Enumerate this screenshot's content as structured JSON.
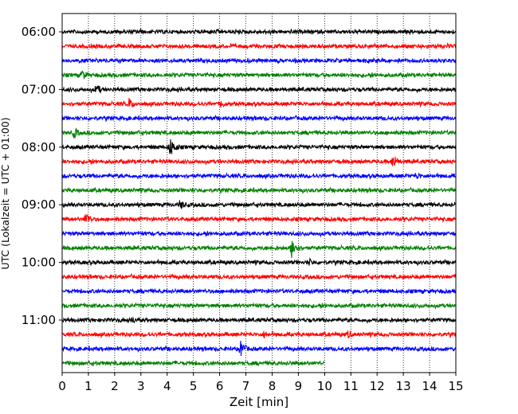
{
  "chart_data": {
    "type": "line",
    "title": "",
    "xlabel": "Zeit  [min]",
    "ylabel": "UTC (Lokalzeit = UTC + 01:00)",
    "xlim": [
      0,
      15
    ],
    "x_ticks": [
      "0",
      "1",
      "2",
      "3",
      "4",
      "5",
      "6",
      "7",
      "8",
      "9",
      "10",
      "11",
      "12",
      "13",
      "14",
      "15"
    ],
    "y_tick_labels": [
      "06:00",
      "07:00",
      "08:00",
      "09:00",
      "10:00",
      "11:00"
    ],
    "grid": "vertical dotted at each minute",
    "legend": "none",
    "colors": [
      "#000000",
      "#ff0000",
      "#0000ff",
      "#008000"
    ],
    "series": [
      {
        "start": "06:00",
        "color": "#000000",
        "end_min": 15,
        "events": []
      },
      {
        "start": "06:15",
        "color": "#ff0000",
        "end_min": 15,
        "events": []
      },
      {
        "start": "06:30",
        "color": "#0000ff",
        "end_min": 15,
        "events": []
      },
      {
        "start": "06:45",
        "color": "#008000",
        "end_min": 15,
        "events": [
          {
            "t": 0.75,
            "amp": 8
          }
        ]
      },
      {
        "start": "07:00",
        "color": "#000000",
        "end_min": 15,
        "events": [
          {
            "t": 1.3,
            "amp": 8
          }
        ]
      },
      {
        "start": "07:15",
        "color": "#ff0000",
        "end_min": 15,
        "events": [
          {
            "t": 2.55,
            "amp": 8
          },
          {
            "t": 6.05,
            "amp": 6
          }
        ]
      },
      {
        "start": "07:30",
        "color": "#0000ff",
        "end_min": 15,
        "events": []
      },
      {
        "start": "07:45",
        "color": "#008000",
        "end_min": 15,
        "events": [
          {
            "t": 0.45,
            "amp": 8
          }
        ]
      },
      {
        "start": "08:00",
        "color": "#000000",
        "end_min": 15,
        "events": [
          {
            "t": 4.1,
            "amp": 14
          }
        ]
      },
      {
        "start": "08:15",
        "color": "#ff0000",
        "end_min": 15,
        "events": [
          {
            "t": 12.6,
            "amp": 10
          }
        ]
      },
      {
        "start": "08:30",
        "color": "#0000ff",
        "end_min": 15,
        "events": [
          {
            "t": 13.5,
            "amp": 6
          }
        ]
      },
      {
        "start": "08:45",
        "color": "#008000",
        "end_min": 15,
        "events": []
      },
      {
        "start": "09:00",
        "color": "#000000",
        "end_min": 15,
        "events": [
          {
            "t": 4.5,
            "amp": 7
          }
        ]
      },
      {
        "start": "09:15",
        "color": "#ff0000",
        "end_min": 15,
        "events": [
          {
            "t": 0.9,
            "amp": 10
          }
        ]
      },
      {
        "start": "09:30",
        "color": "#0000ff",
        "end_min": 15,
        "events": []
      },
      {
        "start": "09:45",
        "color": "#008000",
        "end_min": 15,
        "events": [
          {
            "t": 8.75,
            "amp": 14
          }
        ]
      },
      {
        "start": "10:00",
        "color": "#000000",
        "end_min": 15,
        "events": [
          {
            "t": 9.4,
            "amp": 6
          }
        ]
      },
      {
        "start": "10:15",
        "color": "#ff0000",
        "end_min": 15,
        "events": []
      },
      {
        "start": "10:30",
        "color": "#0000ff",
        "end_min": 15,
        "events": []
      },
      {
        "start": "10:45",
        "color": "#008000",
        "end_min": 15,
        "events": []
      },
      {
        "start": "11:00",
        "color": "#000000",
        "end_min": 15,
        "events": [
          {
            "t": 2.7,
            "amp": 5
          }
        ]
      },
      {
        "start": "11:15",
        "color": "#ff0000",
        "end_min": 15,
        "events": [
          {
            "t": 7.7,
            "amp": 6
          },
          {
            "t": 10.9,
            "amp": 6
          }
        ]
      },
      {
        "start": "11:30",
        "color": "#0000ff",
        "end_min": 15,
        "events": [
          {
            "t": 6.8,
            "amp": 11
          }
        ]
      },
      {
        "start": "11:45",
        "color": "#008000",
        "end_min": 10,
        "events": []
      }
    ]
  }
}
